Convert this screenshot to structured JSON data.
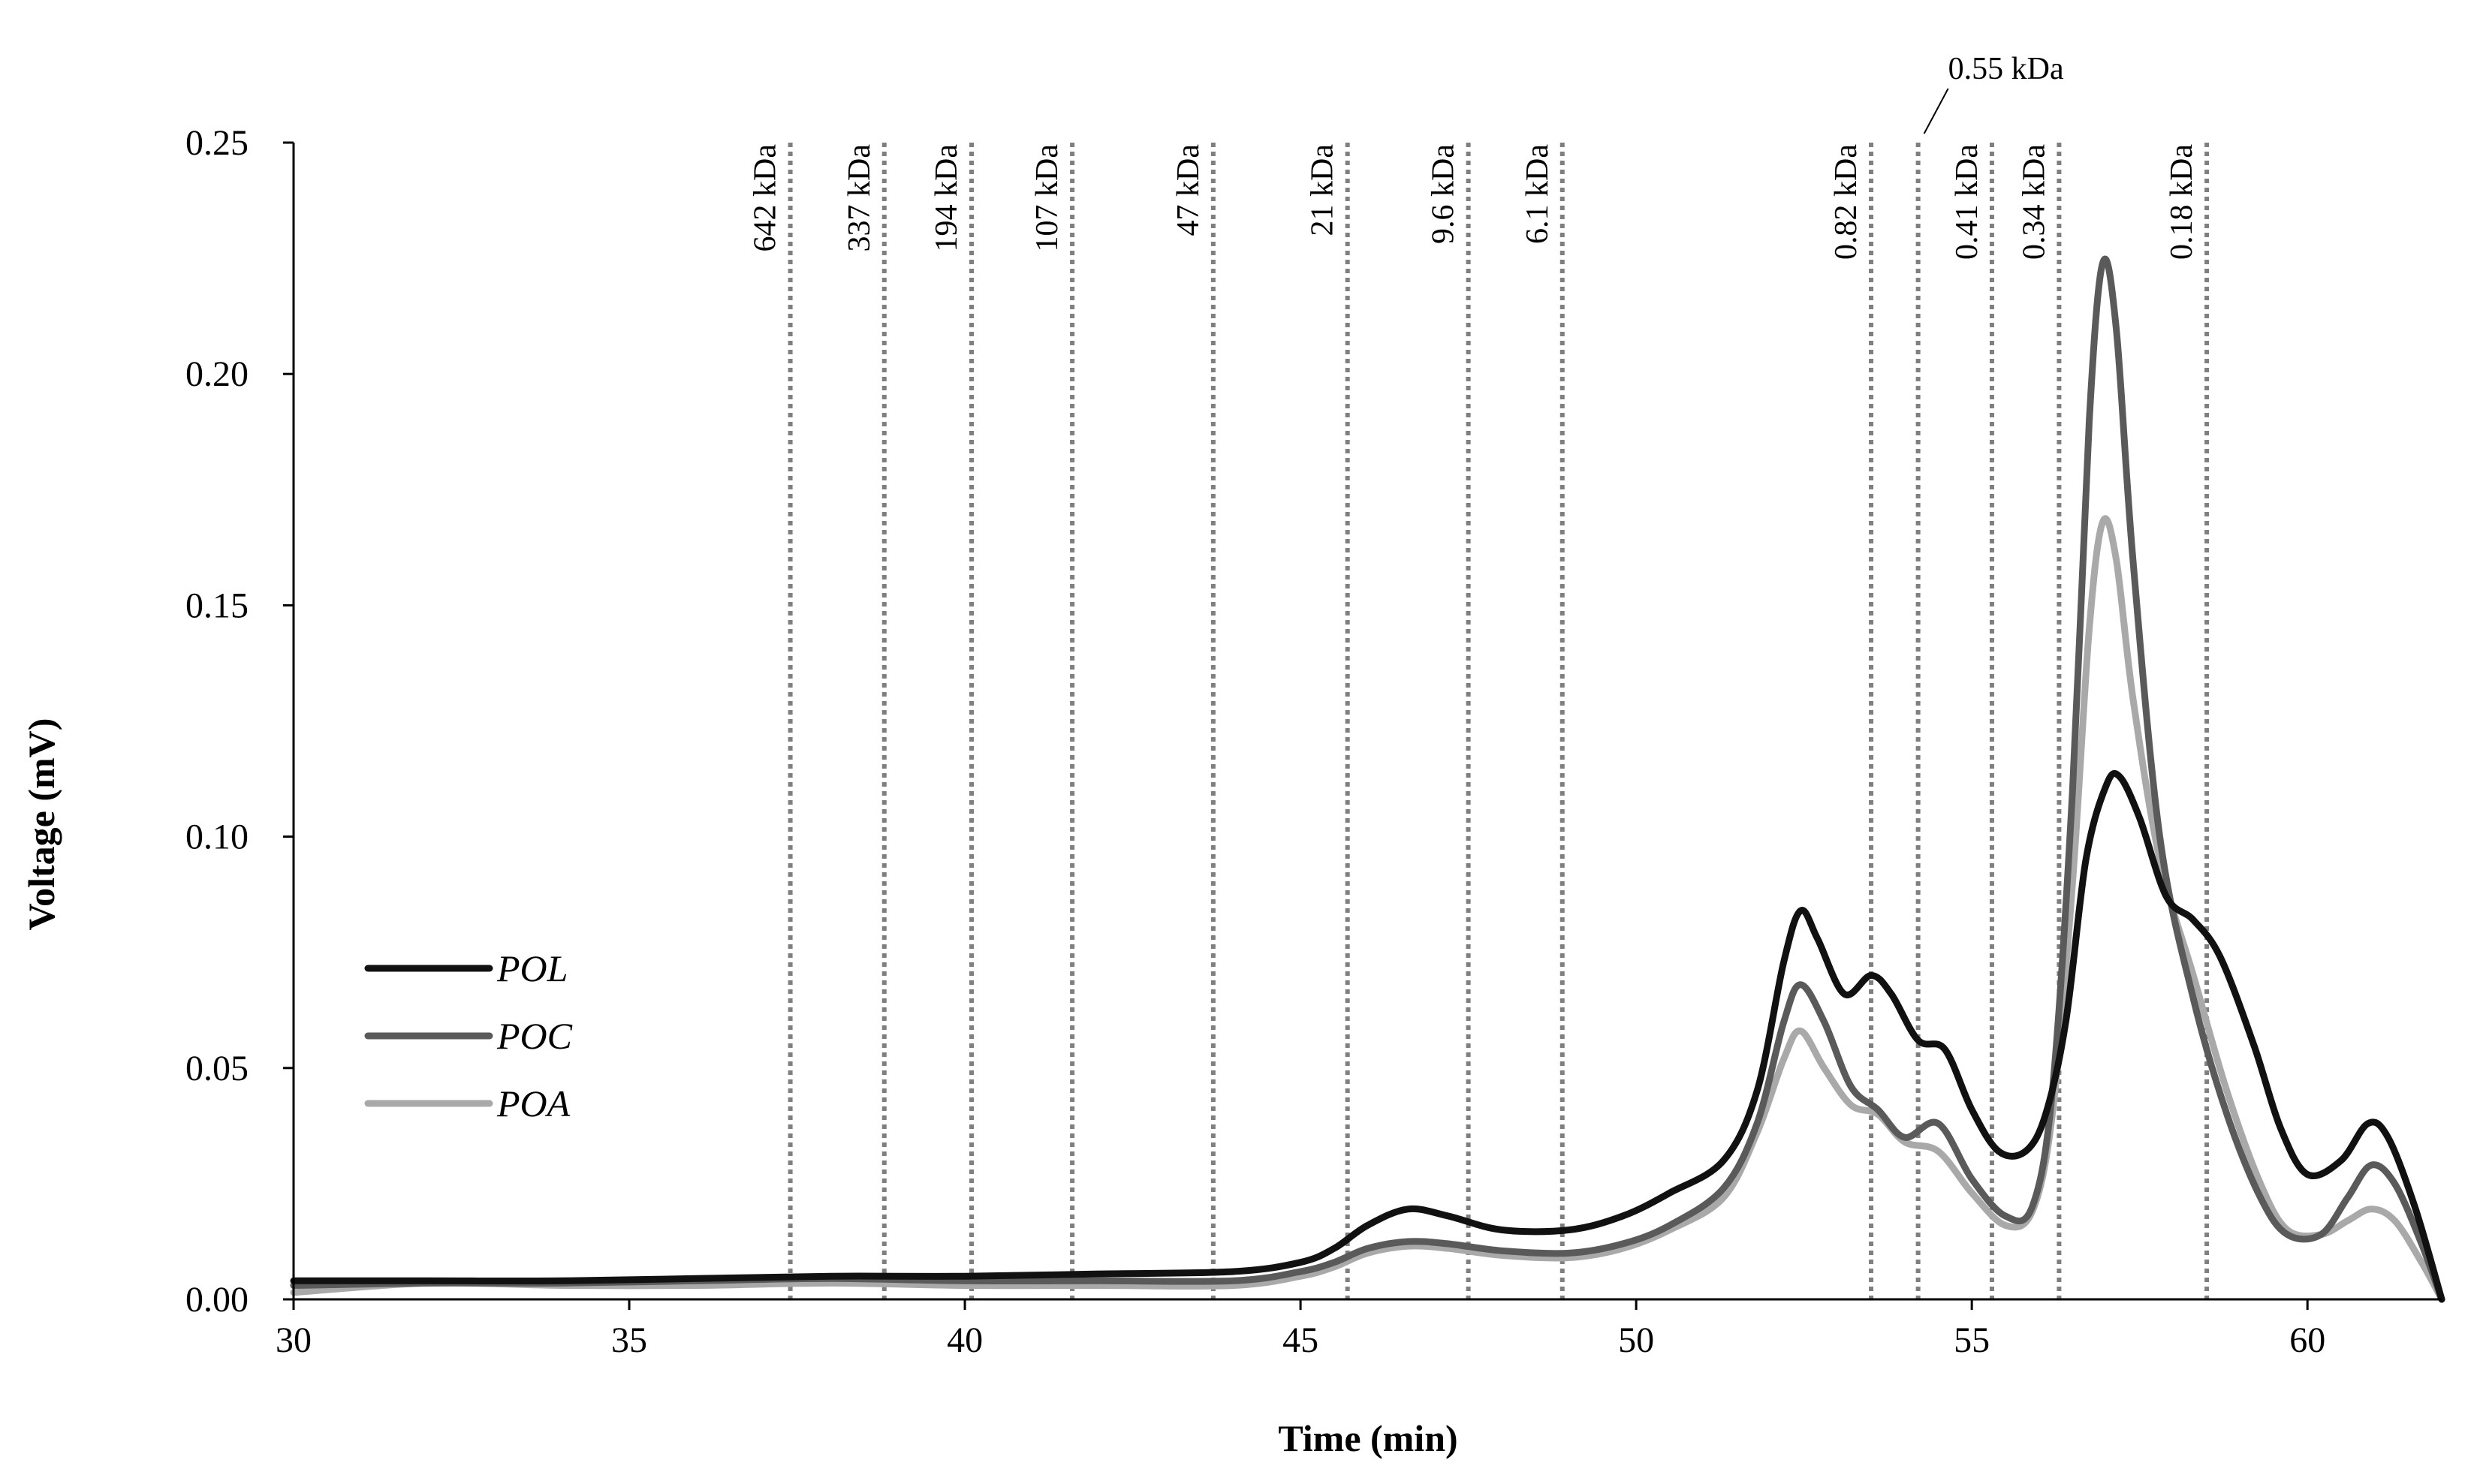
{
  "chart_data": {
    "type": "line",
    "title": "",
    "xlabel": "Time (min)",
    "ylabel": "Voltage (mV)",
    "xlim": [
      30,
      62
    ],
    "ylim": [
      0,
      0.25
    ],
    "grid": false,
    "x_ticks": [
      "30",
      "35",
      "40",
      "45",
      "50",
      "55",
      "60"
    ],
    "y_ticks": [
      "0.00",
      "0.05",
      "0.10",
      "0.15",
      "0.20",
      "0.25"
    ],
    "legend_position": "left",
    "markers": [
      {
        "time": 37.4,
        "label": "642 kDa"
      },
      {
        "time": 38.8,
        "label": "337 kDa"
      },
      {
        "time": 40.1,
        "label": "194 kDa"
      },
      {
        "time": 41.6,
        "label": "107 kDa"
      },
      {
        "time": 43.7,
        "label": "47 kDa"
      },
      {
        "time": 45.7,
        "label": "21 kDa"
      },
      {
        "time": 47.5,
        "label": "9.6 kDa"
      },
      {
        "time": 48.9,
        "label": "6.1 kDa"
      },
      {
        "time": 53.5,
        "label": "0.82 kDa"
      },
      {
        "time": 54.2,
        "label": "0.55 kDa",
        "placement": "top"
      },
      {
        "time": 55.3,
        "label": "0.41 kDa"
      },
      {
        "time": 56.3,
        "label": "0.34 kDa"
      },
      {
        "time": 58.5,
        "label": "0.18 kDa"
      }
    ],
    "series": [
      {
        "name": "POL",
        "color": "#111111",
        "points": [
          [
            30,
            0.004
          ],
          [
            32,
            0.004
          ],
          [
            34,
            0.004
          ],
          [
            36,
            0.0045
          ],
          [
            38,
            0.005
          ],
          [
            40,
            0.005
          ],
          [
            42,
            0.0055
          ],
          [
            44,
            0.006
          ],
          [
            45,
            0.008
          ],
          [
            45.5,
            0.011
          ],
          [
            46,
            0.016
          ],
          [
            46.6,
            0.0195
          ],
          [
            47.2,
            0.018
          ],
          [
            48,
            0.015
          ],
          [
            49,
            0.015
          ],
          [
            49.8,
            0.018
          ],
          [
            50.5,
            0.023
          ],
          [
            51.3,
            0.03
          ],
          [
            51.8,
            0.045
          ],
          [
            52.2,
            0.073
          ],
          [
            52.45,
            0.084
          ],
          [
            52.7,
            0.078
          ],
          [
            53.1,
            0.066
          ],
          [
            53.5,
            0.07
          ],
          [
            53.8,
            0.066
          ],
          [
            54.2,
            0.056
          ],
          [
            54.6,
            0.054
          ],
          [
            55.0,
            0.041
          ],
          [
            55.4,
            0.032
          ],
          [
            55.8,
            0.032
          ],
          [
            56.1,
            0.04
          ],
          [
            56.4,
            0.06
          ],
          [
            56.7,
            0.095
          ],
          [
            57.0,
            0.111
          ],
          [
            57.2,
            0.113
          ],
          [
            57.5,
            0.104
          ],
          [
            57.9,
            0.087
          ],
          [
            58.3,
            0.082
          ],
          [
            58.7,
            0.074
          ],
          [
            59.2,
            0.055
          ],
          [
            59.6,
            0.037
          ],
          [
            60.0,
            0.027
          ],
          [
            60.5,
            0.03
          ],
          [
            60.9,
            0.038
          ],
          [
            61.2,
            0.035
          ],
          [
            61.6,
            0.02
          ],
          [
            62,
            0.0
          ]
        ]
      },
      {
        "name": "POC",
        "color": "#5a5a5a",
        "points": [
          [
            30,
            0.003
          ],
          [
            32,
            0.0035
          ],
          [
            34,
            0.0035
          ],
          [
            36,
            0.004
          ],
          [
            38,
            0.0045
          ],
          [
            40,
            0.004
          ],
          [
            42,
            0.004
          ],
          [
            44,
            0.004
          ],
          [
            45,
            0.006
          ],
          [
            45.5,
            0.008
          ],
          [
            46,
            0.011
          ],
          [
            46.6,
            0.0125
          ],
          [
            47.2,
            0.012
          ],
          [
            48,
            0.0105
          ],
          [
            49,
            0.01
          ],
          [
            49.8,
            0.012
          ],
          [
            50.5,
            0.016
          ],
          [
            51.3,
            0.024
          ],
          [
            51.8,
            0.038
          ],
          [
            52.2,
            0.06
          ],
          [
            52.45,
            0.068
          ],
          [
            52.8,
            0.06
          ],
          [
            53.2,
            0.046
          ],
          [
            53.6,
            0.041
          ],
          [
            54.0,
            0.035
          ],
          [
            54.5,
            0.038
          ],
          [
            55.0,
            0.026
          ],
          [
            55.5,
            0.018
          ],
          [
            55.9,
            0.02
          ],
          [
            56.2,
            0.045
          ],
          [
            56.5,
            0.11
          ],
          [
            56.75,
            0.19
          ],
          [
            56.95,
            0.224
          ],
          [
            57.15,
            0.21
          ],
          [
            57.4,
            0.16
          ],
          [
            57.8,
            0.1
          ],
          [
            58.3,
            0.065
          ],
          [
            58.8,
            0.04
          ],
          [
            59.3,
            0.022
          ],
          [
            59.7,
            0.014
          ],
          [
            60.2,
            0.014
          ],
          [
            60.6,
            0.022
          ],
          [
            60.95,
            0.029
          ],
          [
            61.3,
            0.025
          ],
          [
            61.7,
            0.012
          ],
          [
            62,
            0.0
          ]
        ]
      },
      {
        "name": "POA",
        "color": "#a9a9a9",
        "points": [
          [
            30,
            0.0015
          ],
          [
            32,
            0.0035
          ],
          [
            34,
            0.003
          ],
          [
            36,
            0.003
          ],
          [
            38,
            0.0035
          ],
          [
            40,
            0.003
          ],
          [
            42,
            0.003
          ],
          [
            44,
            0.003
          ],
          [
            45,
            0.005
          ],
          [
            45.5,
            0.007
          ],
          [
            46,
            0.01
          ],
          [
            46.6,
            0.0115
          ],
          [
            47.2,
            0.011
          ],
          [
            48,
            0.0095
          ],
          [
            49,
            0.009
          ],
          [
            49.8,
            0.011
          ],
          [
            50.5,
            0.015
          ],
          [
            51.3,
            0.022
          ],
          [
            51.8,
            0.036
          ],
          [
            52.2,
            0.052
          ],
          [
            52.45,
            0.058
          ],
          [
            52.8,
            0.05
          ],
          [
            53.2,
            0.042
          ],
          [
            53.6,
            0.04
          ],
          [
            54.0,
            0.034
          ],
          [
            54.5,
            0.032
          ],
          [
            55.0,
            0.023
          ],
          [
            55.5,
            0.016
          ],
          [
            55.9,
            0.019
          ],
          [
            56.2,
            0.04
          ],
          [
            56.5,
            0.09
          ],
          [
            56.75,
            0.145
          ],
          [
            56.95,
            0.168
          ],
          [
            57.15,
            0.16
          ],
          [
            57.4,
            0.13
          ],
          [
            57.8,
            0.095
          ],
          [
            58.3,
            0.07
          ],
          [
            58.8,
            0.045
          ],
          [
            59.3,
            0.025
          ],
          [
            59.7,
            0.015
          ],
          [
            60.2,
            0.014
          ],
          [
            60.6,
            0.017
          ],
          [
            60.95,
            0.0195
          ],
          [
            61.3,
            0.017
          ],
          [
            61.7,
            0.008
          ],
          [
            62,
            0.0
          ]
        ]
      }
    ]
  }
}
